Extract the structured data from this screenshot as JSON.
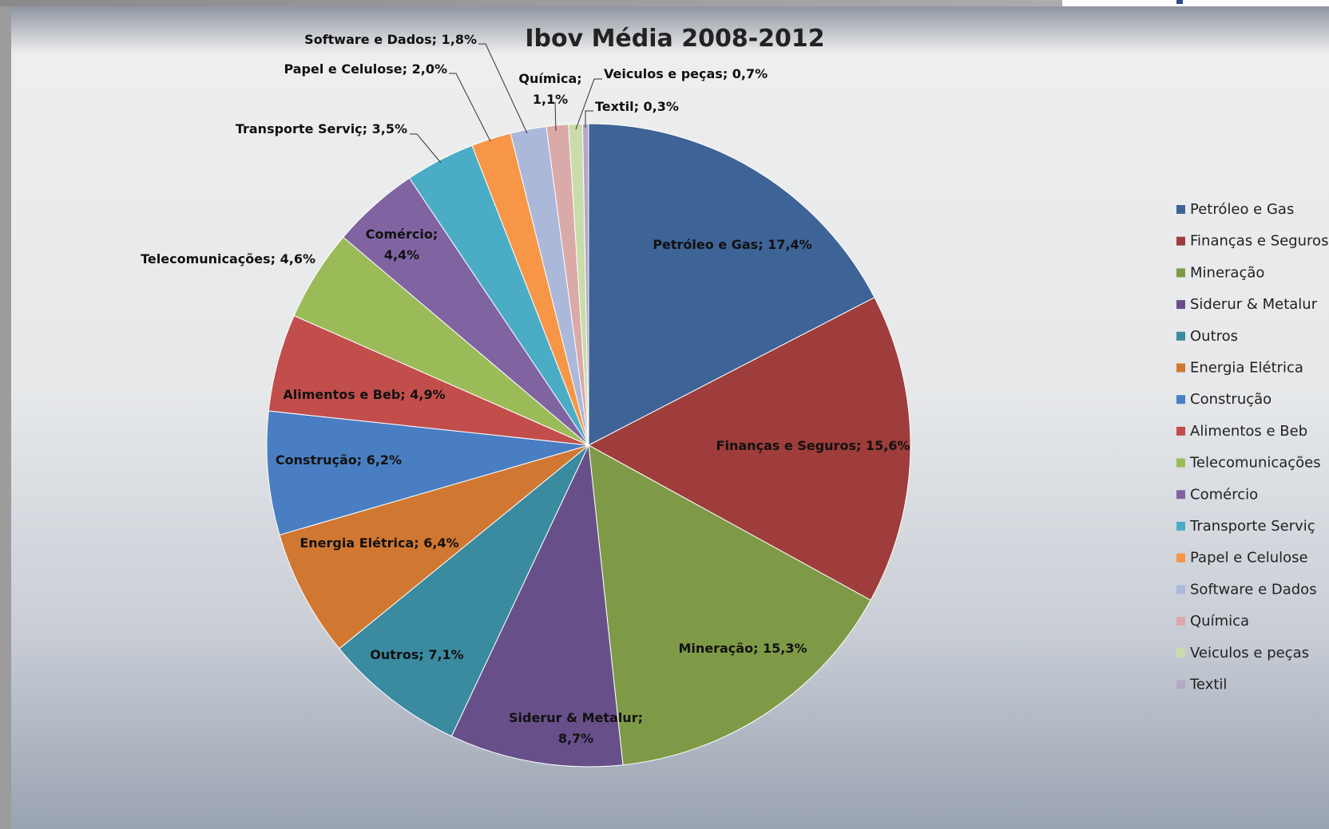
{
  "chart_data": {
    "type": "pie",
    "title": "Ibov Média 2008-2012",
    "slices": [
      {
        "name": "Petróleo e Gas",
        "value": 17.4,
        "label": "Petróleo e Gas; 17,4%",
        "color": "#3E6396"
      },
      {
        "name": "Finanças e Seguros",
        "value": 15.6,
        "label": "Finanças e Seguros; 15,6%",
        "color": "#9E3D3B"
      },
      {
        "name": "Mineração",
        "value": 15.3,
        "label": "Mineração; 15,3%",
        "color": "#7F9A46"
      },
      {
        "name": "Siderur & Metalur",
        "value": 8.7,
        "label": "Siderur & Metalur;\n8,7%",
        "color": "#67508A"
      },
      {
        "name": "Outros",
        "value": 7.1,
        "label": "Outros; 7,1%",
        "color": "#3A8AA0"
      },
      {
        "name": "Energia Elétrica",
        "value": 6.4,
        "label": "Energia Elétrica; 6,4%",
        "color": "#D07832"
      },
      {
        "name": "Construção",
        "value": 6.2,
        "label": "Construção; 6,2%",
        "color": "#4A7EC2"
      },
      {
        "name": "Alimentos e Beb",
        "value": 4.9,
        "label": "Alimentos e Beb; 4,9%",
        "color": "#C24E4C"
      },
      {
        "name": "Telecomunicações",
        "value": 4.6,
        "label": "Telecomunicações; 4,6%",
        "color": "#9BBB59"
      },
      {
        "name": "Comércio",
        "value": 4.4,
        "label": "Comércio;\n4,4%",
        "color": "#8064A2"
      },
      {
        "name": "Transporte Serviç",
        "value": 3.5,
        "label": "Transporte Serviç; 3,5%",
        "color": "#4BACC6"
      },
      {
        "name": "Papel e Celulose",
        "value": 2.0,
        "label": "Papel e Celulose; 2,0%",
        "color": "#F79646"
      },
      {
        "name": "Software e Dados",
        "value": 1.8,
        "label": "Software e Dados; 1,8%",
        "color": "#AAB8DA"
      },
      {
        "name": "Química",
        "value": 1.1,
        "label": "Química;\n1,1%",
        "color": "#DAAAA8"
      },
      {
        "name": "Veiculos e peças",
        "value": 0.7,
        "label": "Veiculos e peças; 0,7%",
        "color": "#C9DCAA"
      },
      {
        "name": "Textil",
        "value": 0.3,
        "label": "Textil; 0,3%",
        "color": "#B4A7C8"
      }
    ],
    "legend": {
      "placement": "right",
      "entries": [
        "Petróleo e Gas",
        "Finanças e Seguros",
        "Mineração",
        "Siderur & Metalur",
        "Outros",
        "Energia Elétrica",
        "Construção",
        "Alimentos e Beb",
        "Telecomunicações",
        "Comércio",
        "Transporte Serviç",
        "Papel e Celulose",
        "Software e Dados",
        "Química",
        "Veiculos e peças",
        "Textil"
      ]
    }
  }
}
